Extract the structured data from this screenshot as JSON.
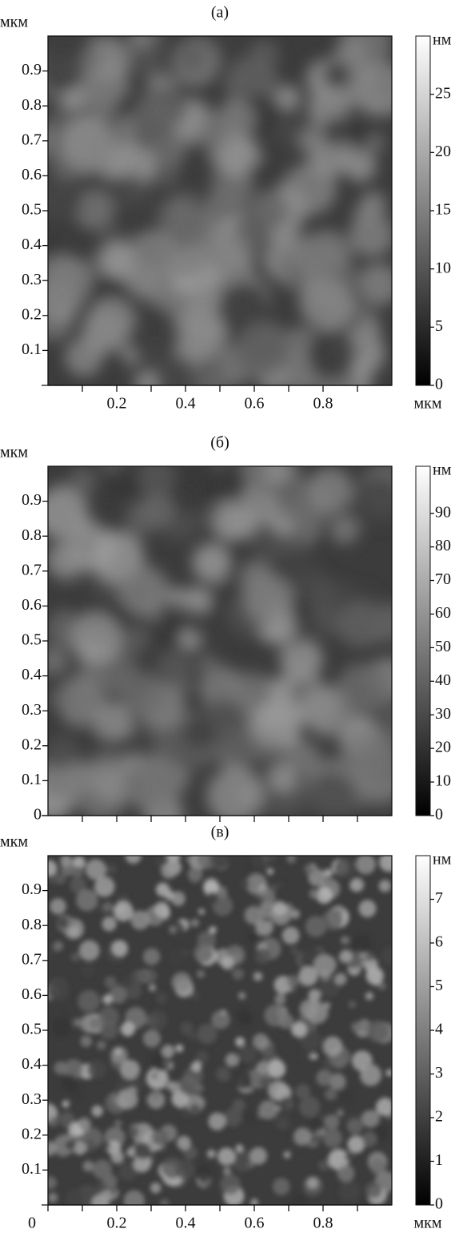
{
  "chart_data": [
    {
      "type": "heatmap",
      "title": "(а)",
      "y_label": "мкм",
      "x_label": "мкм",
      "colorbar_label": "нм",
      "colormap": "gray",
      "xlim": [
        0,
        1
      ],
      "ylim": [
        0,
        1
      ],
      "xticks": [
        0.2,
        0.4,
        0.6,
        0.8
      ],
      "xminor": [
        0.1,
        0.3,
        0.5,
        0.7,
        0.9
      ],
      "yticks": [
        0.1,
        0.2,
        0.3,
        0.4,
        0.5,
        0.6,
        0.7,
        0.8,
        0.9
      ],
      "zlim": [
        0,
        30
      ],
      "zticks": [
        0,
        5,
        10,
        15,
        20,
        25
      ]
    },
    {
      "type": "heatmap",
      "title": "(б)",
      "y_label": "мкм",
      "colorbar_label": "нм",
      "colormap": "gray",
      "xlim": [
        0,
        1
      ],
      "ylim": [
        0,
        1
      ],
      "xminor": [
        0.1,
        0.2,
        0.3,
        0.4,
        0.5,
        0.6,
        0.7,
        0.8,
        0.9
      ],
      "yticks": [
        0,
        0.1,
        0.2,
        0.3,
        0.4,
        0.5,
        0.6,
        0.7,
        0.8,
        0.9
      ],
      "zlim": [
        0,
        104
      ],
      "zticks": [
        0,
        10,
        20,
        30,
        40,
        50,
        60,
        70,
        80,
        90
      ]
    },
    {
      "type": "heatmap",
      "title": "(в)",
      "y_label": "мкм",
      "x_label": "мкм",
      "colorbar_label": "нм",
      "colormap": "gray",
      "xlim": [
        0,
        1
      ],
      "ylim": [
        0,
        1
      ],
      "xticks": [
        0,
        0.2,
        0.4,
        0.6,
        0.8
      ],
      "xminor": [
        0.1,
        0.3,
        0.5,
        0.7,
        0.9
      ],
      "yticks": [
        0.1,
        0.2,
        0.3,
        0.4,
        0.5,
        0.6,
        0.7,
        0.8,
        0.9
      ],
      "zlim": [
        0,
        8
      ],
      "zticks": [
        0,
        1,
        2,
        3,
        4,
        5,
        6,
        7
      ]
    }
  ]
}
